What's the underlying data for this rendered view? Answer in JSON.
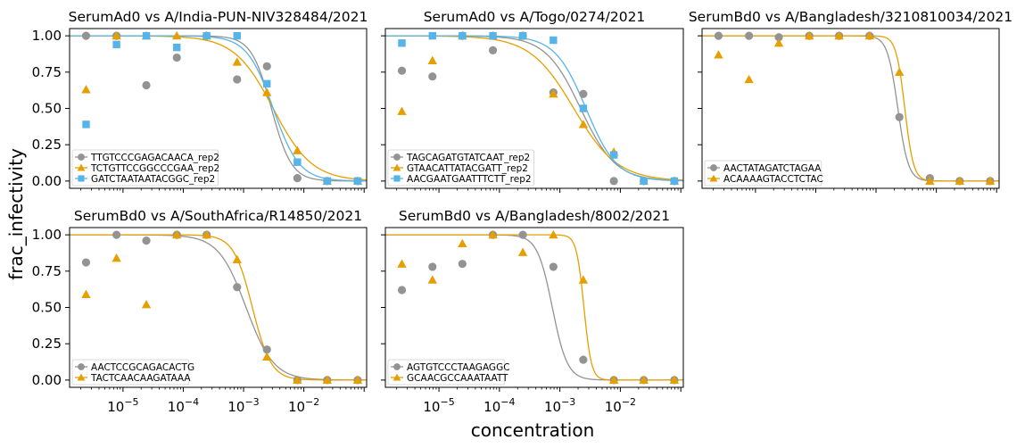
{
  "colors": {
    "grey": "#939393",
    "orange": "#e69f00",
    "blue": "#56b4e9"
  },
  "figure": {
    "xlabel": "concentration",
    "ylabel": "frac_infectivity"
  },
  "chart_data": [
    {
      "type": "scatter",
      "title": "SerumAd0 vs A/India-PUN-NIV328484/2021",
      "xscale": "log",
      "xlim": [
        1.3e-06,
        0.11
      ],
      "ylim": [
        -0.05,
        1.05
      ],
      "yticks": [
        "0.00",
        "0.25",
        "0.50",
        "0.75",
        "1.00"
      ],
      "xticks": [
        "10^-5",
        "10^-4",
        "10^-3",
        "10^-2"
      ],
      "show_xticklabels": false,
      "show_yticklabels": true,
      "legend": "lower-left",
      "x": [
        2.44e-06,
        7.81e-06,
        2.44e-05,
        7.81e-05,
        0.000244,
        0.000781,
        0.00244,
        0.00781,
        0.0244,
        0.0781
      ],
      "series": [
        {
          "name": "TTGTCCCGAGACAACA_rep2",
          "color": "#939393",
          "marker": "circle",
          "ic50": 0.0029,
          "hill": 2.6,
          "y": [
            1.0,
            1.0,
            0.66,
            0.85,
            1.0,
            0.7,
            0.79,
            0.02,
            0.0,
            0.0
          ]
        },
        {
          "name": "TCTGTTCCGGCCCGAA_rep2",
          "color": "#e69f00",
          "marker": "triangle",
          "ic50": 0.0031,
          "hill": 1.35,
          "y": [
            0.63,
            1.0,
            1.0,
            1.0,
            1.0,
            0.82,
            0.61,
            0.21,
            0.0,
            0.0
          ]
        },
        {
          "name": "GATCTAATAATACGGC_rep2",
          "color": "#56b4e9",
          "marker": "square",
          "ic50": 0.0031,
          "hill": 2.0,
          "y": [
            0.39,
            0.94,
            1.0,
            0.92,
            1.0,
            1.0,
            0.67,
            0.13,
            0.0,
            0.0
          ]
        }
      ]
    },
    {
      "type": "scatter",
      "title": "SerumAd0 vs A/Togo/0274/2021",
      "xscale": "log",
      "xlim": [
        1.3e-06,
        0.11
      ],
      "ylim": [
        -0.05,
        1.05
      ],
      "yticks": [
        "0.00",
        "0.25",
        "0.50",
        "0.75",
        "1.00"
      ],
      "xticks": [
        "10^-5",
        "10^-4",
        "10^-3",
        "10^-2"
      ],
      "show_xticklabels": false,
      "show_yticklabels": false,
      "legend": "lower-left",
      "x": [
        2.44e-06,
        7.81e-06,
        2.44e-05,
        7.81e-05,
        0.000244,
        0.000781,
        0.00244,
        0.00781,
        0.0244,
        0.0781
      ],
      "series": [
        {
          "name": "TAGCAGATGTATCAAT_rep2",
          "color": "#939393",
          "marker": "circle",
          "ic50": 0.0022,
          "hill": 1.5,
          "y": [
            0.76,
            0.72,
            1.0,
            0.9,
            1.0,
            0.61,
            0.6,
            0.0,
            0.0,
            0.0
          ]
        },
        {
          "name": "GTAACATTATACGATT_rep2",
          "color": "#e69f00",
          "marker": "triangle",
          "ic50": 0.0017,
          "hill": 1.2,
          "y": [
            0.48,
            0.83,
            1.0,
            1.0,
            1.0,
            0.6,
            0.39,
            0.2,
            0.0,
            0.0
          ]
        },
        {
          "name": "AACGAATGAATTTCTT_rep2",
          "color": "#56b4e9",
          "marker": "square",
          "ic50": 0.0027,
          "hill": 1.7,
          "y": [
            0.95,
            1.0,
            1.0,
            1.0,
            1.0,
            0.97,
            0.5,
            0.18,
            0.0,
            0.0
          ]
        }
      ]
    },
    {
      "type": "scatter",
      "title": "SerumBd0 vs A/Bangladesh/3210810034/2021",
      "xscale": "log",
      "xlim": [
        1.3e-06,
        0.11
      ],
      "ylim": [
        -0.05,
        1.05
      ],
      "yticks": [
        "0.00",
        "0.25",
        "0.50",
        "0.75",
        "1.00"
      ],
      "xticks": [
        "10^-5",
        "10^-4",
        "10^-3",
        "10^-2"
      ],
      "show_xticklabels": false,
      "show_yticklabels": false,
      "legend": "lower-left",
      "x": [
        2.44e-06,
        7.81e-06,
        2.44e-05,
        7.81e-05,
        0.000244,
        0.000781,
        0.00244,
        0.00781,
        0.0244,
        0.0781
      ],
      "series": [
        {
          "name": "AACTATAGATCTAGAA",
          "color": "#939393",
          "marker": "circle",
          "ic50": 0.0023,
          "hill": 5.0,
          "y": [
            1.0,
            1.0,
            0.99,
            1.0,
            1.0,
            1.0,
            0.44,
            0.02,
            0.0,
            0.0
          ]
        },
        {
          "name": "ACAAAAGTACCTCTAC",
          "color": "#e69f00",
          "marker": "triangle",
          "ic50": 0.003,
          "hill": 6.0,
          "y": [
            0.87,
            0.7,
            0.95,
            1.0,
            1.0,
            1.0,
            0.75,
            0.0,
            0.0,
            0.0
          ]
        }
      ]
    },
    {
      "type": "scatter",
      "title": "SerumBd0 vs A/SouthAfrica/R14850/2021",
      "xscale": "log",
      "xlim": [
        1.3e-06,
        0.11
      ],
      "ylim": [
        -0.05,
        1.05
      ],
      "yticks": [
        "0.00",
        "0.25",
        "0.50",
        "0.75",
        "1.00"
      ],
      "xticks": [
        "10^-5",
        "10^-4",
        "10^-3",
        "10^-2"
      ],
      "show_xticklabels": true,
      "show_yticklabels": true,
      "legend": "lower-left",
      "x": [
        2.44e-06,
        7.81e-06,
        2.44e-05,
        7.81e-05,
        0.000244,
        0.000781,
        0.00244,
        0.00781,
        0.0244,
        0.0781
      ],
      "series": [
        {
          "name": "AACTCCGCAGACACTG",
          "color": "#939393",
          "marker": "circle",
          "ic50": 0.0011,
          "hill": 1.9,
          "y": [
            0.81,
            1.0,
            0.96,
            1.0,
            1.0,
            0.64,
            0.21,
            0.0,
            0.0,
            0.0
          ]
        },
        {
          "name": "TACTCAACAAGATAAA",
          "color": "#e69f00",
          "marker": "triangle",
          "ic50": 0.0014,
          "hill": 2.8,
          "y": [
            0.59,
            0.84,
            0.52,
            1.0,
            1.0,
            0.83,
            0.16,
            0.0,
            0.0,
            0.0
          ]
        }
      ]
    },
    {
      "type": "scatter",
      "title": "SerumBd0 vs A/Bangladesh/8002/2021",
      "xscale": "log",
      "xlim": [
        1.3e-06,
        0.11
      ],
      "ylim": [
        -0.05,
        1.05
      ],
      "yticks": [
        "0.00",
        "0.25",
        "0.50",
        "0.75",
        "1.00"
      ],
      "xticks": [
        "10^-5",
        "10^-4",
        "10^-3",
        "10^-2"
      ],
      "show_xticklabels": true,
      "show_yticklabels": false,
      "legend": "lower-left",
      "x": [
        2.44e-06,
        7.81e-06,
        2.44e-05,
        7.81e-05,
        0.000244,
        0.000781,
        0.00244,
        0.00781,
        0.0244,
        0.0781
      ],
      "series": [
        {
          "name": "AGTGTCCCTAAGAGGC",
          "color": "#939393",
          "marker": "circle",
          "ic50": 0.00075,
          "hill": 3.5,
          "y": [
            0.62,
            0.78,
            0.8,
            1.0,
            1.0,
            0.78,
            0.14,
            0.0,
            0.0,
            0.0
          ]
        },
        {
          "name": "GCAACGCCAAATAATT",
          "color": "#e69f00",
          "marker": "triangle",
          "ic50": 0.0025,
          "hill": 7.0,
          "y": [
            0.8,
            0.69,
            0.94,
            1.0,
            0.88,
            1.0,
            0.69,
            0.0,
            0.0,
            0.0
          ]
        }
      ]
    }
  ]
}
